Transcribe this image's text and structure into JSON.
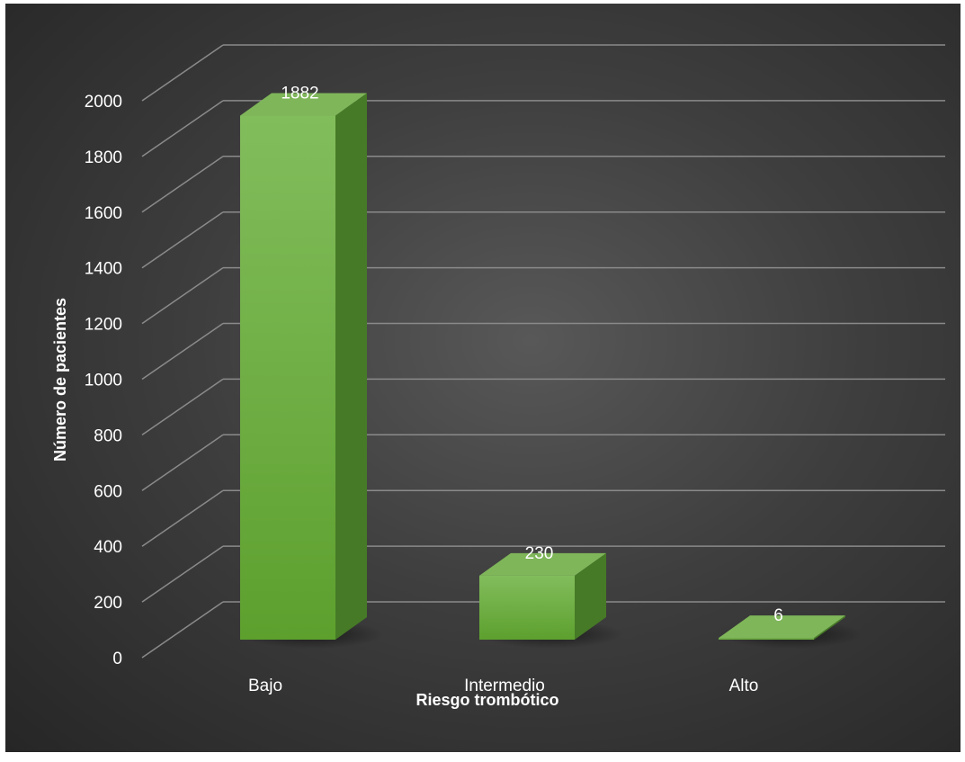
{
  "chart_data": {
    "type": "bar",
    "style": "3d-column",
    "categories": [
      "Bajo",
      "Intermedio",
      "Alto"
    ],
    "values": [
      1882,
      230,
      6
    ],
    "data_labels": [
      "1882",
      "230",
      "6"
    ],
    "xlabel": "Riesgo trombótico",
    "ylabel": "Número de pacientes",
    "ylim": [
      0,
      2000
    ],
    "yticks": [
      "0",
      "200",
      "400",
      "600",
      "800",
      "1000",
      "1200",
      "1400",
      "1600",
      "1800",
      "2000"
    ],
    "grid": true,
    "legend": "none",
    "colors": {
      "bar_front": "#6aa838",
      "bar_side": "#467a26",
      "bar_top": "#7fb65a",
      "grid": "#8a8a8a"
    }
  }
}
